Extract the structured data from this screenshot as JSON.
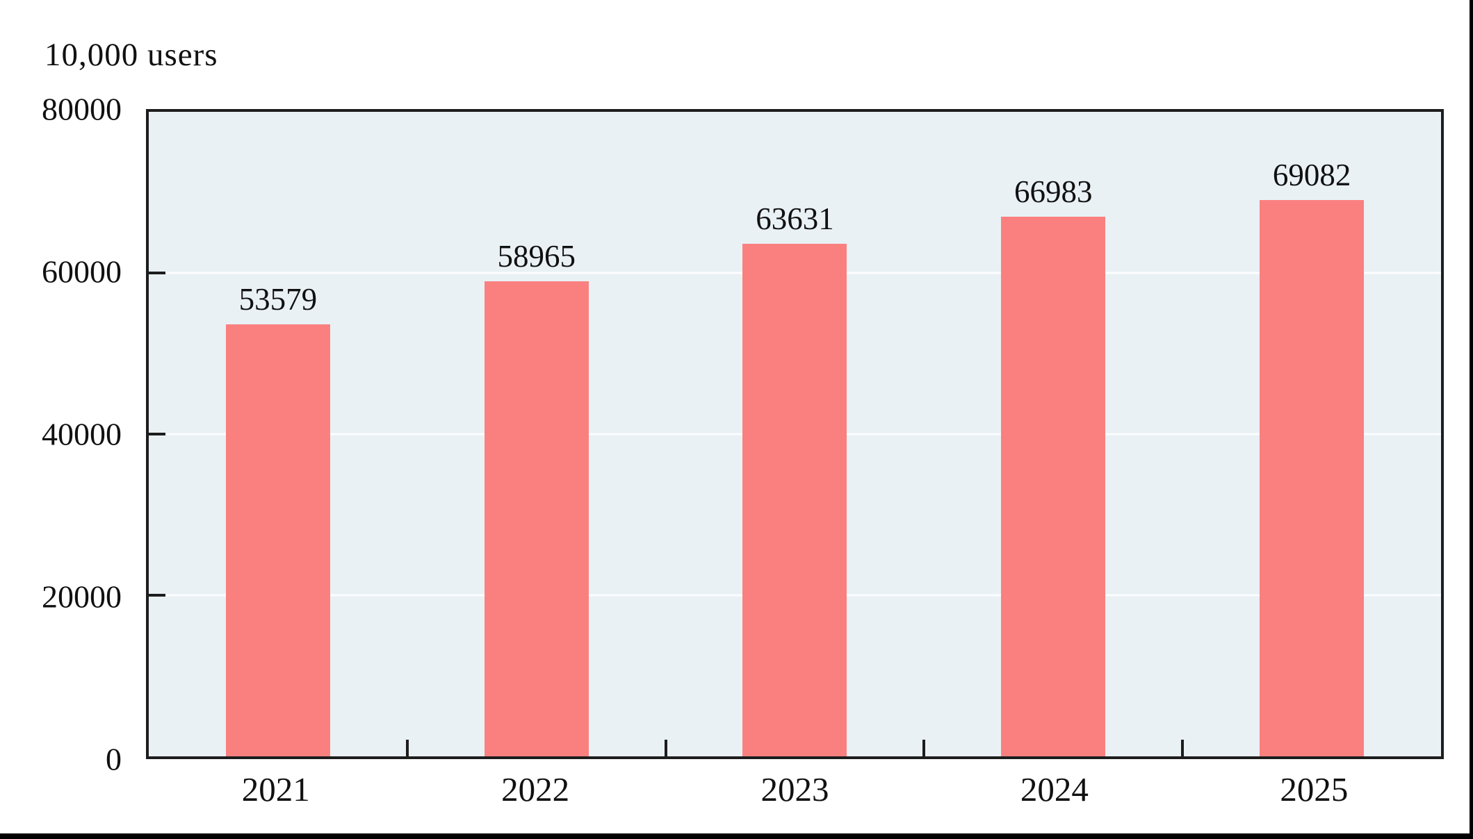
{
  "chart_data": {
    "type": "bar",
    "title": "10,000 users",
    "categories": [
      "2021",
      "2022",
      "2023",
      "2024",
      "2025"
    ],
    "values": [
      53579,
      58965,
      63631,
      66983,
      69082
    ],
    "data_labels": [
      "53579",
      "58965",
      "63631",
      "66983",
      "69082"
    ],
    "xlabel": "",
    "ylabel": "10,000 users",
    "ylim": [
      0,
      80000
    ],
    "yticks": [
      0,
      20000,
      40000,
      60000,
      80000
    ],
    "ytick_labels": [
      "0",
      "20000",
      "40000",
      "60000",
      "80000"
    ],
    "grid": "horizontal",
    "legend_position": "none",
    "colors": {
      "bar": "#fa8080",
      "plot_background": "#e9f1f5",
      "gridline": "#fbfdfe",
      "axis": "#1d1d1d",
      "text": "#111111"
    }
  }
}
